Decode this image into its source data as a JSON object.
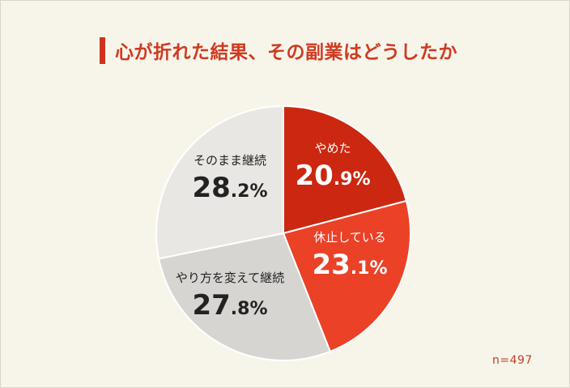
{
  "title": "心が折れた結果、その副業はどうしたか",
  "note": "n=497",
  "colors": {
    "title": "#cf3a21",
    "accent_bar": "#d0321d"
  },
  "chart_data": {
    "type": "pie",
    "title": "心が折れた結果、その副業はどうしたか",
    "slices": [
      {
        "label": "やめた",
        "value": 20.9,
        "int": "20",
        "dec": ".9%",
        "color": "#cc2710",
        "text_color": "#ffffff"
      },
      {
        "label": "休止している",
        "value": 23.1,
        "int": "23",
        "dec": ".1%",
        "color": "#ea4127",
        "text_color": "#ffffff"
      },
      {
        "label": "やり方を変えて継続",
        "value": 27.8,
        "int": "27",
        "dec": ".8%",
        "color": "#d7d5d2",
        "text_color": "#222222"
      },
      {
        "label": "そのまま継続",
        "value": 28.2,
        "int": "28",
        "dec": ".2%",
        "color": "#e8e7e3",
        "text_color": "#222222"
      }
    ],
    "start": "12 o'clock",
    "direction": "clockwise",
    "sample_size": "n=497"
  }
}
